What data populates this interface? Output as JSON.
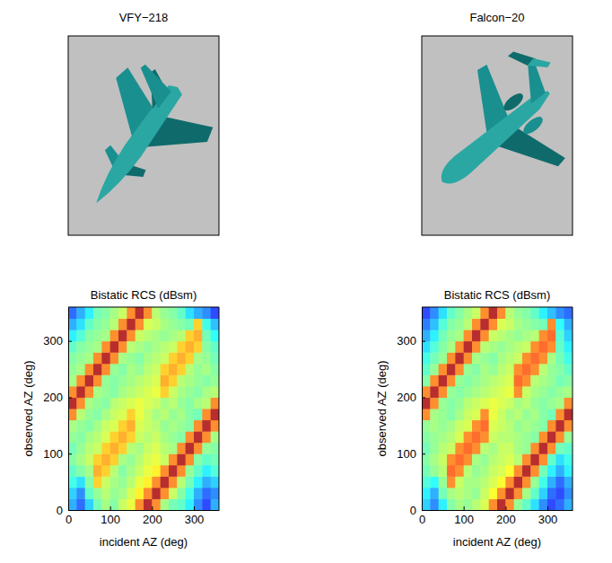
{
  "images": [
    {
      "title": "VFY−218"
    },
    {
      "title": "Falcon−20"
    }
  ],
  "chart_data": [
    {
      "type": "heatmap",
      "title": "Bistatic RCS (dBsm)",
      "x_label": "incident AZ (deg)",
      "y_label": "observed AZ (deg)",
      "xlim": [
        0,
        360
      ],
      "ylim": [
        0,
        360
      ],
      "xticks": [
        0,
        100,
        200,
        300
      ],
      "yticks": [
        0,
        100,
        200,
        300
      ],
      "color": "jet",
      "zlim": [
        -20,
        30
      ],
      "x": [
        10,
        30,
        50,
        70,
        90,
        110,
        130,
        150,
        170,
        190,
        210,
        230,
        250,
        270,
        290,
        310,
        330,
        350
      ],
      "y": [
        10,
        30,
        50,
        70,
        90,
        110,
        130,
        150,
        170,
        190,
        210,
        230,
        250,
        270,
        290,
        310,
        330,
        350
      ],
      "cells": [
        [
          -6,
          -10,
          -4,
          3,
          6,
          4,
          8,
          10,
          18,
          28,
          18,
          6,
          3,
          2,
          -2,
          -8,
          -12,
          -6
        ],
        [
          -4,
          -8,
          2,
          5,
          7,
          5,
          6,
          9,
          12,
          18,
          28,
          18,
          8,
          4,
          0,
          -6,
          -10,
          -8
        ],
        [
          0,
          -3,
          4,
          14,
          8,
          6,
          5,
          7,
          10,
          12,
          18,
          28,
          18,
          7,
          3,
          -2,
          -6,
          -4
        ],
        [
          2,
          4,
          6,
          16,
          14,
          7,
          4,
          6,
          8,
          10,
          12,
          18,
          28,
          18,
          5,
          2,
          -2,
          1
        ],
        [
          4,
          6,
          8,
          14,
          16,
          14,
          6,
          5,
          7,
          9,
          10,
          8,
          18,
          28,
          18,
          4,
          2,
          3
        ],
        [
          3,
          5,
          7,
          8,
          14,
          16,
          14,
          7,
          6,
          8,
          9,
          7,
          6,
          18,
          28,
          18,
          5,
          4
        ],
        [
          5,
          4,
          6,
          7,
          9,
          14,
          16,
          14,
          8,
          7,
          8,
          6,
          5,
          4,
          18,
          28,
          18,
          6
        ],
        [
          6,
          5,
          4,
          6,
          8,
          9,
          14,
          16,
          9,
          8,
          7,
          5,
          6,
          5,
          4,
          18,
          28,
          18
        ],
        [
          18,
          7,
          5,
          4,
          6,
          8,
          9,
          14,
          10,
          8,
          6,
          7,
          5,
          6,
          4,
          3,
          18,
          28
        ],
        [
          28,
          18,
          6,
          5,
          4,
          7,
          8,
          9,
          10,
          9,
          8,
          6,
          7,
          5,
          4,
          6,
          7,
          18
        ],
        [
          18,
          28,
          18,
          6,
          5,
          4,
          6,
          7,
          8,
          9,
          10,
          14,
          8,
          6,
          5,
          4,
          6,
          7
        ],
        [
          6,
          18,
          28,
          18,
          5,
          4,
          5,
          6,
          7,
          8,
          9,
          16,
          14,
          7,
          6,
          5,
          4,
          5
        ],
        [
          5,
          6,
          18,
          28,
          18,
          5,
          4,
          6,
          5,
          7,
          8,
          14,
          16,
          14,
          7,
          5,
          6,
          4
        ],
        [
          4,
          5,
          6,
          18,
          28,
          18,
          6,
          5,
          4,
          6,
          7,
          8,
          14,
          16,
          14,
          6,
          5,
          3
        ],
        [
          2,
          4,
          5,
          6,
          18,
          28,
          18,
          7,
          6,
          5,
          6,
          7,
          8,
          14,
          16,
          14,
          4,
          2
        ],
        [
          -2,
          1,
          4,
          5,
          6,
          18,
          28,
          18,
          8,
          7,
          6,
          5,
          6,
          7,
          14,
          16,
          3,
          -1
        ],
        [
          -6,
          -3,
          2,
          4,
          5,
          7,
          18,
          28,
          18,
          9,
          8,
          6,
          5,
          4,
          3,
          14,
          0,
          -5
        ],
        [
          -10,
          -6,
          -2,
          3,
          4,
          6,
          8,
          18,
          28,
          18,
          7,
          5,
          4,
          2,
          -3,
          -6,
          -8,
          -12
        ]
      ]
    },
    {
      "type": "heatmap",
      "title": "Bistatic RCS (dBsm)",
      "x_label": "incident AZ (deg)",
      "y_label": "observed AZ (deg)",
      "xlim": [
        0,
        360
      ],
      "ylim": [
        0,
        360
      ],
      "xticks": [
        0,
        100,
        200,
        300
      ],
      "yticks": [
        0,
        100,
        200,
        300
      ],
      "color": "jet",
      "zlim": [
        -20,
        30
      ],
      "x": [
        10,
        30,
        50,
        70,
        90,
        110,
        130,
        150,
        170,
        190,
        210,
        230,
        250,
        270,
        290,
        310,
        330,
        350
      ],
      "y": [
        10,
        30,
        50,
        70,
        90,
        110,
        130,
        150,
        170,
        190,
        210,
        230,
        250,
        270,
        290,
        310,
        330,
        350
      ],
      "cells": [
        [
          -4,
          -8,
          -2,
          4,
          6,
          5,
          7,
          9,
          18,
          28,
          18,
          5,
          2,
          -3,
          -8,
          -12,
          -10,
          -6
        ],
        [
          -2,
          -6,
          3,
          6,
          7,
          6,
          5,
          8,
          11,
          18,
          28,
          18,
          6,
          2,
          -4,
          -10,
          -12,
          -8
        ],
        [
          1,
          -1,
          5,
          18,
          8,
          6,
          6,
          7,
          9,
          11,
          18,
          28,
          18,
          5,
          0,
          -6,
          -10,
          -6
        ],
        [
          3,
          5,
          7,
          20,
          18,
          7,
          5,
          6,
          8,
          9,
          11,
          18,
          28,
          18,
          3,
          -2,
          -6,
          -2
        ],
        [
          4,
          6,
          8,
          18,
          20,
          18,
          6,
          5,
          7,
          8,
          9,
          7,
          18,
          28,
          18,
          2,
          -3,
          0
        ],
        [
          3,
          5,
          7,
          8,
          18,
          20,
          18,
          7,
          6,
          8,
          8,
          6,
          5,
          18,
          28,
          18,
          3,
          2
        ],
        [
          4,
          5,
          6,
          7,
          9,
          18,
          20,
          18,
          8,
          7,
          7,
          6,
          5,
          4,
          18,
          28,
          18,
          5
        ],
        [
          5,
          6,
          5,
          6,
          8,
          9,
          18,
          20,
          9,
          8,
          7,
          5,
          6,
          5,
          4,
          18,
          28,
          18
        ],
        [
          18,
          6,
          5,
          4,
          6,
          8,
          9,
          18,
          10,
          8,
          6,
          7,
          5,
          6,
          4,
          3,
          18,
          28
        ],
        [
          28,
          18,
          5,
          4,
          5,
          7,
          8,
          9,
          10,
          9,
          8,
          6,
          7,
          5,
          4,
          5,
          6,
          18
        ],
        [
          18,
          28,
          18,
          5,
          4,
          5,
          6,
          7,
          8,
          9,
          10,
          18,
          8,
          6,
          5,
          4,
          5,
          6
        ],
        [
          4,
          18,
          28,
          18,
          5,
          4,
          5,
          6,
          7,
          8,
          9,
          20,
          18,
          7,
          6,
          5,
          3,
          4
        ],
        [
          2,
          5,
          18,
          28,
          18,
          5,
          4,
          6,
          5,
          7,
          8,
          18,
          20,
          18,
          7,
          5,
          4,
          2
        ],
        [
          0,
          3,
          5,
          18,
          28,
          18,
          6,
          5,
          4,
          6,
          7,
          8,
          18,
          20,
          18,
          6,
          3,
          0
        ],
        [
          -3,
          1,
          4,
          6,
          18,
          28,
          18,
          7,
          6,
          5,
          6,
          7,
          8,
          18,
          20,
          18,
          2,
          -2
        ],
        [
          -6,
          -2,
          3,
          5,
          6,
          18,
          28,
          18,
          8,
          7,
          6,
          5,
          6,
          7,
          18,
          20,
          1,
          -4
        ],
        [
          -9,
          -5,
          1,
          4,
          5,
          7,
          18,
          28,
          18,
          9,
          8,
          6,
          5,
          4,
          3,
          18,
          -1,
          -6
        ],
        [
          -12,
          -8,
          -3,
          2,
          4,
          6,
          8,
          18,
          28,
          18,
          7,
          5,
          4,
          2,
          -2,
          -5,
          -8,
          -10
        ]
      ]
    }
  ]
}
